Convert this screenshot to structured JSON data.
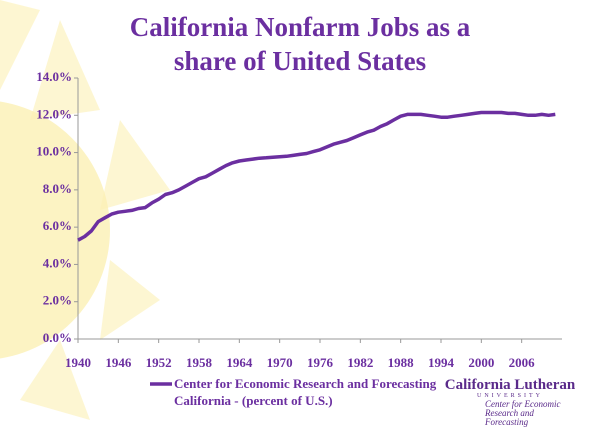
{
  "chart_data": {
    "type": "line",
    "title": "California Nonfarm Jobs as a share of United States",
    "x": [
      1940,
      1941,
      1942,
      1943,
      1944,
      1945,
      1946,
      1947,
      1948,
      1949,
      1950,
      1951,
      1952,
      1953,
      1954,
      1955,
      1956,
      1957,
      1958,
      1959,
      1960,
      1961,
      1962,
      1963,
      1964,
      1965,
      1966,
      1967,
      1968,
      1969,
      1970,
      1971,
      1972,
      1973,
      1974,
      1975,
      1976,
      1977,
      1978,
      1979,
      1980,
      1981,
      1982,
      1983,
      1984,
      1985,
      1986,
      1987,
      1988,
      1989,
      1990,
      1991,
      1992,
      1993,
      1994,
      1995,
      1996,
      1997,
      1998,
      1999,
      2000,
      2001,
      2002,
      2003,
      2004,
      2005,
      2006,
      2007,
      2008,
      2009,
      2010,
      2011
    ],
    "series": [
      {
        "name": "Center for Economic Research and Forecasting California - (percent of U.S.)",
        "color": "#6b2fa0",
        "values": [
          5.3,
          5.5,
          5.8,
          6.3,
          6.5,
          6.7,
          6.8,
          6.85,
          6.9,
          7.0,
          7.05,
          7.3,
          7.5,
          7.75,
          7.85,
          8.0,
          8.2,
          8.4,
          8.6,
          8.7,
          8.9,
          9.1,
          9.3,
          9.45,
          9.55,
          9.6,
          9.65,
          9.7,
          9.72,
          9.75,
          9.78,
          9.8,
          9.85,
          9.9,
          9.95,
          10.05,
          10.15,
          10.3,
          10.45,
          10.55,
          10.65,
          10.8,
          10.95,
          11.1,
          11.2,
          11.4,
          11.55,
          11.75,
          11.95,
          12.05,
          12.05,
          12.05,
          12.0,
          11.95,
          11.9,
          11.9,
          11.95,
          12.0,
          12.05,
          12.1,
          12.15,
          12.15,
          12.15,
          12.15,
          12.1,
          12.1,
          12.05,
          12.0,
          12.0,
          12.05,
          12.0,
          12.05
        ]
      }
    ],
    "xlim": [
      1940,
      2012
    ],
    "xticks": [
      1940,
      1946,
      1952,
      1958,
      1964,
      1970,
      1976,
      1982,
      1988,
      1994,
      2000,
      2006
    ],
    "ylim": [
      0,
      14
    ],
    "yticks": [
      {
        "value": 0,
        "label": "0.0%"
      },
      {
        "value": 2,
        "label": "2.0%"
      },
      {
        "value": 4,
        "label": "4.0%"
      },
      {
        "value": 6,
        "label": "6.0%"
      },
      {
        "value": 8,
        "label": "8.0%"
      },
      {
        "value": 10,
        "label": "10.0%"
      },
      {
        "value": 12,
        "label": "12.0%"
      },
      {
        "value": 14,
        "label": "14.0%"
      }
    ],
    "legend": "bottom-left"
  },
  "logo": {
    "name": "California Lutheran",
    "subtitle": "UNIVERSITY",
    "tagline": "Center for Economic Research and Forecasting"
  }
}
